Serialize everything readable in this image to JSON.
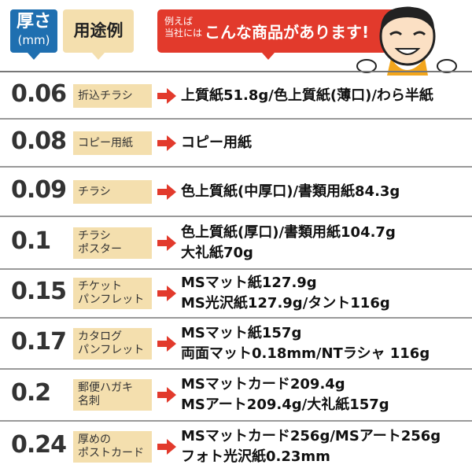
{
  "header": {
    "thickness": "厚さ",
    "unit": "(mm)",
    "usage": "用途例",
    "products_prefix_line1": "例えば",
    "products_prefix_line2": "当社には",
    "products_title": "こんな商品があります!"
  },
  "colors": {
    "blue": "#1f6fb0",
    "beige": "#f4dfae",
    "red": "#e23a2c"
  },
  "rows": [
    {
      "thickness": "0.06",
      "usage": [
        "折込チラシ"
      ],
      "products": [
        "上質紙51.8g/色上質紙(薄口)/わら半紙"
      ]
    },
    {
      "thickness": "0.08",
      "usage": [
        "コピー用紙"
      ],
      "products": [
        "コピー用紙"
      ]
    },
    {
      "thickness": "0.09",
      "usage": [
        "チラシ"
      ],
      "products": [
        "色上質紙(中厚口)/書類用紙84.3g"
      ]
    },
    {
      "thickness": "0.1",
      "usage": [
        "チラシ",
        "ポスター"
      ],
      "products": [
        "色上質紙(厚口)/書類用紙104.7g",
        "大礼紙70g"
      ]
    },
    {
      "thickness": "0.15",
      "usage": [
        "チケット",
        "パンフレット"
      ],
      "products": [
        "MSマット紙127.9g",
        "MS光沢紙127.9g/タント116g"
      ]
    },
    {
      "thickness": "0.17",
      "usage": [
        "カタログ",
        "パンフレット"
      ],
      "products": [
        "MSマット紙157g",
        "両面マット0.18mm/NTラシャ 116g"
      ]
    },
    {
      "thickness": "0.2",
      "usage": [
        "郵便ハガキ",
        "名刺"
      ],
      "products": [
        "MSマットカード209.4g",
        "MSアート209.4g/大礼紙157g"
      ]
    },
    {
      "thickness": "0.24",
      "usage": [
        "厚めの",
        "ポストカード"
      ],
      "products": [
        "MSマットカード256g/MSアート256g",
        "フォト光沢紙0.23mm"
      ]
    }
  ]
}
